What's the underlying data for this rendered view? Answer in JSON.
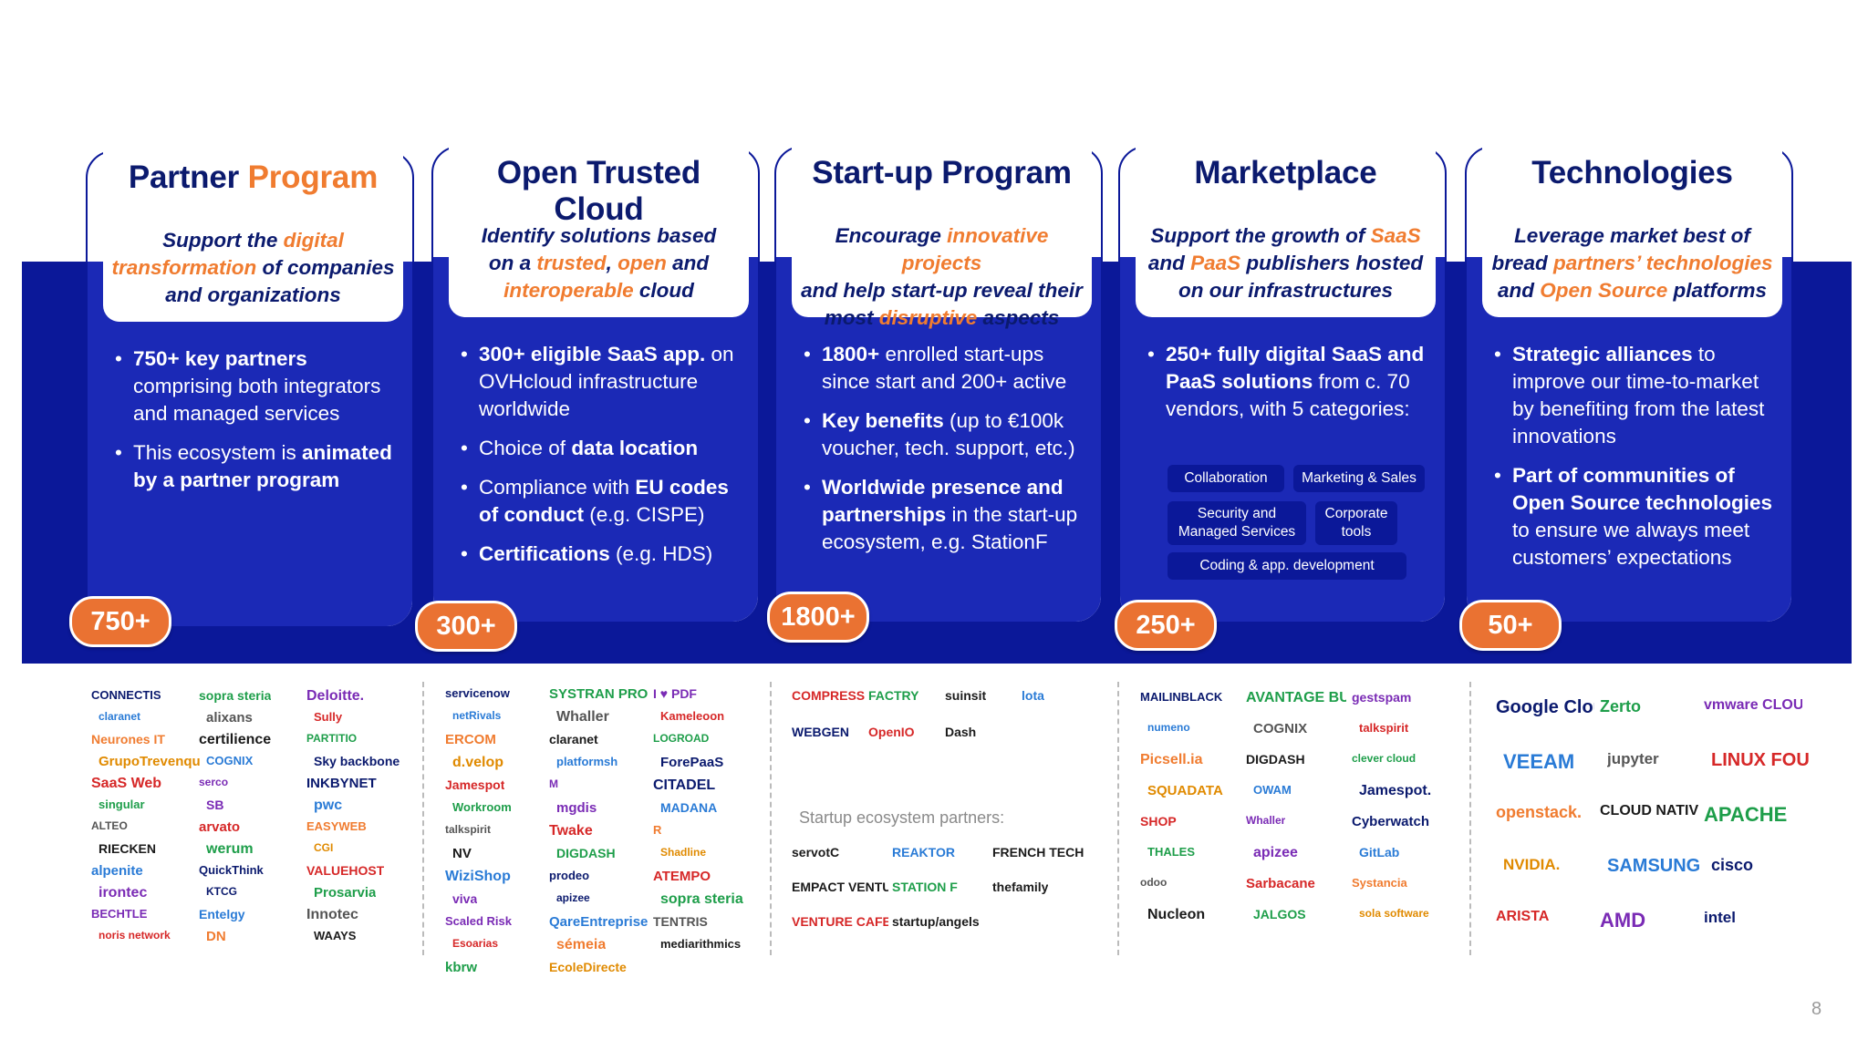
{
  "cards": [
    {
      "title_pre": "Partner ",
      "title_acc": "Program",
      "tag": [
        [
          "Support the ",
          ""
        ],
        [
          "digital",
          "a"
        ],
        [
          "\n",
          ""
        ],
        [
          "transformation",
          "a"
        ],
        [
          " of companies\nand organizations",
          ""
        ]
      ],
      "bullets": [
        [
          [
            "750+ key partners",
            "b"
          ],
          [
            " comprising both integrators and managed services",
            ""
          ]
        ],
        [
          [
            "This ecosystem is ",
            ""
          ],
          [
            "animated by a partner program",
            "b"
          ]
        ]
      ],
      "count": "750+"
    },
    {
      "title_pre": "Open Trusted Cloud",
      "title_acc": "",
      "tag": [
        [
          "Identify solutions based\non a ",
          ""
        ],
        [
          "trusted",
          "a"
        ],
        [
          ", ",
          ""
        ],
        [
          "open",
          "a"
        ],
        [
          " and\n",
          ""
        ],
        [
          "interoperable",
          "a"
        ],
        [
          " cloud",
          ""
        ]
      ],
      "bullets": [
        [
          [
            "300+ eligible SaaS app.",
            "b"
          ],
          [
            " on OVHcloud infrastructure worldwide",
            ""
          ]
        ],
        [
          [
            "Choice of ",
            ""
          ],
          [
            "data location",
            "b"
          ]
        ],
        [
          [
            "Compliance with ",
            ""
          ],
          [
            "EU codes of conduct",
            "b"
          ],
          [
            " (e.g. CISPE)",
            ""
          ]
        ],
        [
          [
            "Certifications",
            "b"
          ],
          [
            " (e.g. HDS)",
            ""
          ]
        ]
      ],
      "count": "300+"
    },
    {
      "title_pre": "Start-up Program",
      "title_acc": "",
      "tag": [
        [
          "Encourage ",
          ""
        ],
        [
          "innovative projects",
          "a"
        ],
        [
          "\nand help start-up reveal their\nmost ",
          ""
        ],
        [
          "disruptive",
          "a"
        ],
        [
          " aspects",
          ""
        ]
      ],
      "bullets": [
        [
          [
            "1800+",
            "b"
          ],
          [
            " enrolled start-ups since start and 200+ active",
            ""
          ]
        ],
        [
          [
            "Key benefits",
            "b"
          ],
          [
            " (up to €100k voucher, tech. support, etc.)",
            ""
          ]
        ],
        [
          [
            "Worldwide presence and partnerships",
            "b"
          ],
          [
            " in the start-up ecosystem, e.g. StationF",
            ""
          ]
        ]
      ],
      "count": "1800+"
    },
    {
      "title_pre": "Marketplace",
      "title_acc": "",
      "tag": [
        [
          "Support the growth of ",
          ""
        ],
        [
          "SaaS",
          "a"
        ],
        [
          "\nand ",
          ""
        ],
        [
          "PaaS",
          "a"
        ],
        [
          " publishers hosted\non our infrastructures",
          ""
        ]
      ],
      "bullets": [
        [
          [
            "250+ fully digital SaaS and PaaS solutions",
            "b"
          ],
          [
            " from c. 70 vendors, with 5 categories:",
            ""
          ]
        ]
      ],
      "chips": [
        "Collaboration",
        "Marketing & Sales",
        "Security and Managed Services",
        "Corporate tools",
        "Coding & app. development"
      ],
      "count": "250+"
    },
    {
      "title_pre": "Technologies",
      "title_acc": "",
      "tag": [
        [
          "Leverage market best of\nbread ",
          ""
        ],
        [
          "partners’ technologies",
          "a"
        ],
        [
          "\nand ",
          ""
        ],
        [
          "Open Source",
          "a"
        ],
        [
          " platforms",
          ""
        ]
      ],
      "bullets": [
        [
          [
            "Strategic alliances",
            "b"
          ],
          [
            " to improve our time-to-market by benefiting from the latest innovations",
            ""
          ]
        ],
        [
          [
            "Part of communities of Open Source technologies",
            "b"
          ],
          [
            " to ensure we always meet customers’ expectations",
            ""
          ]
        ]
      ],
      "count": "50+"
    }
  ],
  "logos": {
    "partners": [
      "CONNECTIS",
      "sopra steria",
      "Deloitte.",
      "claranet",
      "alixans",
      "Sully",
      "Neurones IT",
      "certilience",
      "PARTITIO",
      "GrupoTrevenque",
      "COGNIX",
      "Sky backbone",
      "SaaS Web",
      "serco",
      "INKBYNET",
      "singular",
      "SB",
      "pwc",
      "ALTEO",
      "arvato",
      "EASYWEB",
      "RIECKEN",
      "werum",
      "CGI",
      "alpenite",
      "QuickThink",
      "VALUEHOST",
      "irontec",
      "KTCG",
      "Prosarvia",
      "BECHTLE",
      "Entelgy",
      "Innotec",
      "noris network",
      "DN",
      "WAAYS"
    ],
    "opentrusted": [
      "servicenow",
      "SYSTRAN PRO",
      "I ♥ PDF",
      "netRivals",
      "Whaller",
      "Kameleoon",
      "ERCOM",
      "claranet",
      "LOGROAD",
      "d.velop",
      "platformsh",
      "ForePaaS",
      "Jamespot",
      "M",
      "CITADEL",
      "Workroom",
      "mgdis",
      "MADANA",
      "talkspirit",
      "Twake",
      "R",
      "NV",
      "DIGDASH",
      "Shadline",
      "WiziShop",
      "prodeo",
      "ATEMPO",
      "viva",
      "apizee",
      "sopra steria",
      "Scaled Risk",
      "QareEntreprise",
      "TENTRIS",
      "Esoarias",
      "sémeia",
      "mediarithmics",
      "kbrw",
      "EcoleDirecte"
    ],
    "startup": [
      "COMPRESSOR",
      "FACTRY",
      "suinsit",
      "lota",
      "WEBGEN",
      "OpenIO",
      "Dash",
      "servotC",
      "REAKTOR",
      "FRENCH TECH",
      "EMPACT VENTURES",
      "STATION F",
      "thefamily",
      "VENTURE CAFE",
      "startup/angels"
    ],
    "startup_sub": "Startup ecosystem partners:",
    "marketplace": [
      "MAILINBLACK",
      "AVANTAGE BUSINESS",
      "gestspam",
      "numeno",
      "COGNIX",
      "talkspirit",
      "Picsell.ia",
      "DIGDASH",
      "clever cloud",
      "SQUADATA",
      "OWAM",
      "Jamespot.",
      "SHOP",
      "Whaller",
      "Cyberwatch",
      "THALES",
      "apizee",
      "GitLab",
      "odoo",
      "Sarbacane",
      "Systancia",
      "Nucleon",
      "JALGOS",
      "sola software"
    ],
    "technologies": [
      "Google Cloud",
      "Zerto",
      "vmware CLOUD VERIFIED",
      "VEEAM",
      "jupyter",
      "LINUX FOUNDATION",
      "openstack.",
      "CLOUD NATIVE COMPUTING FOUNDATION",
      "APACHE",
      "NVIDIA.",
      "SAMSUNG",
      "cisco",
      "ARISTA",
      "AMD",
      "intel"
    ]
  },
  "page_number": "8"
}
